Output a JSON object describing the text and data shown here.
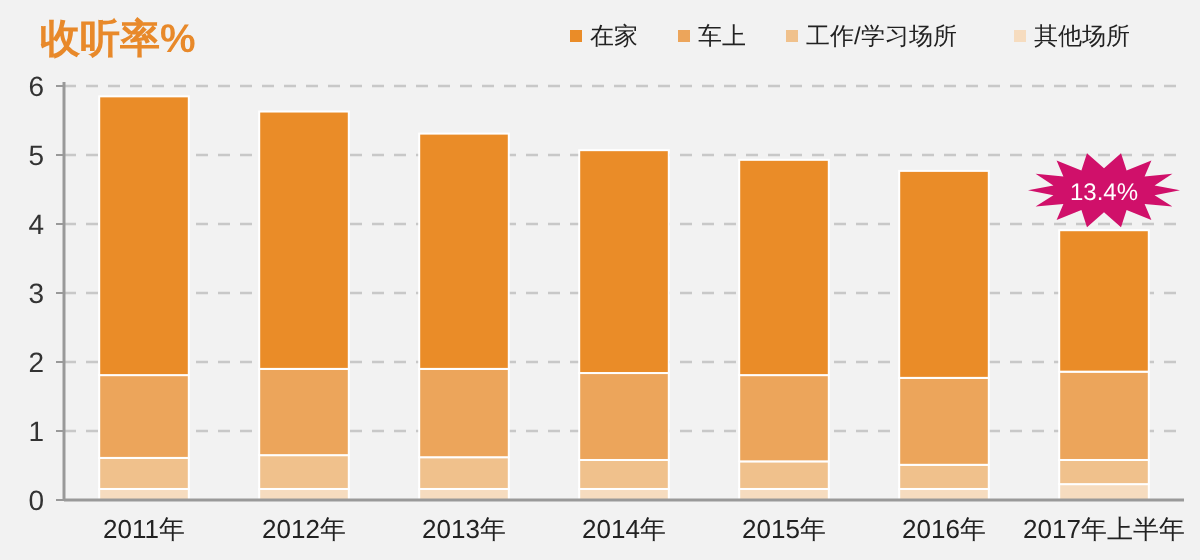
{
  "chart_data": {
    "type": "bar",
    "title": "收听率%",
    "stacked": true,
    "grid": "y",
    "legend": "top right",
    "categories": [
      "2011年",
      "2012年",
      "2013年",
      "2014年",
      "2015年",
      "2016年",
      "2017年上半年"
    ],
    "series": [
      {
        "name": "其他场所",
        "color": "#f6dcbf",
        "values": [
          0.16,
          0.16,
          0.16,
          0.16,
          0.16,
          0.16,
          0.23
        ]
      },
      {
        "name": "工作/学习场所",
        "color": "#f0c18c",
        "values": [
          0.45,
          0.49,
          0.46,
          0.42,
          0.4,
          0.35,
          0.35
        ]
      },
      {
        "name": "车上",
        "color": "#eca55b",
        "values": [
          1.2,
          1.25,
          1.28,
          1.26,
          1.25,
          1.26,
          1.28
        ]
      },
      {
        "name": "在家",
        "color": "#ea8c28",
        "values": [
          4.04,
          3.73,
          3.41,
          3.23,
          3.12,
          3.0,
          2.05
        ]
      }
    ],
    "ylim": [
      0,
      6
    ],
    "yticks": [
      0,
      1,
      2,
      3,
      4,
      5,
      6
    ],
    "annotations": [
      {
        "text": "13.4%",
        "x": "2017年上半年",
        "y": 3.91
      }
    ]
  }
}
